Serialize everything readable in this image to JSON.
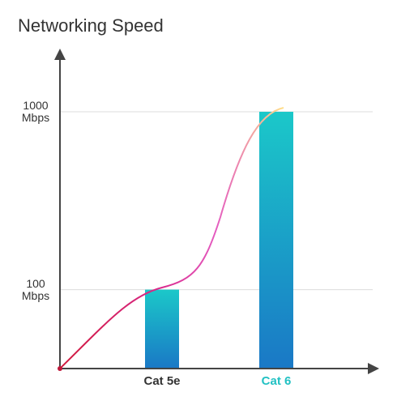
{
  "chart_data": {
    "type": "bar",
    "title": "Networking Speed",
    "categories": [
      "Cat 5e",
      "Cat 6"
    ],
    "category_colors": [
      "#333333",
      "#22c1c3"
    ],
    "values": [
      100,
      1000
    ],
    "gradient": [
      "#1bc8c9",
      "#1a78c6"
    ],
    "log_scale": true,
    "ylim": [
      36,
      2150
    ],
    "yticks": [
      {
        "value": 100,
        "label": "100 Mbps"
      },
      {
        "value": 1000,
        "label": "1000 Mbps"
      }
    ],
    "grid": true
  }
}
